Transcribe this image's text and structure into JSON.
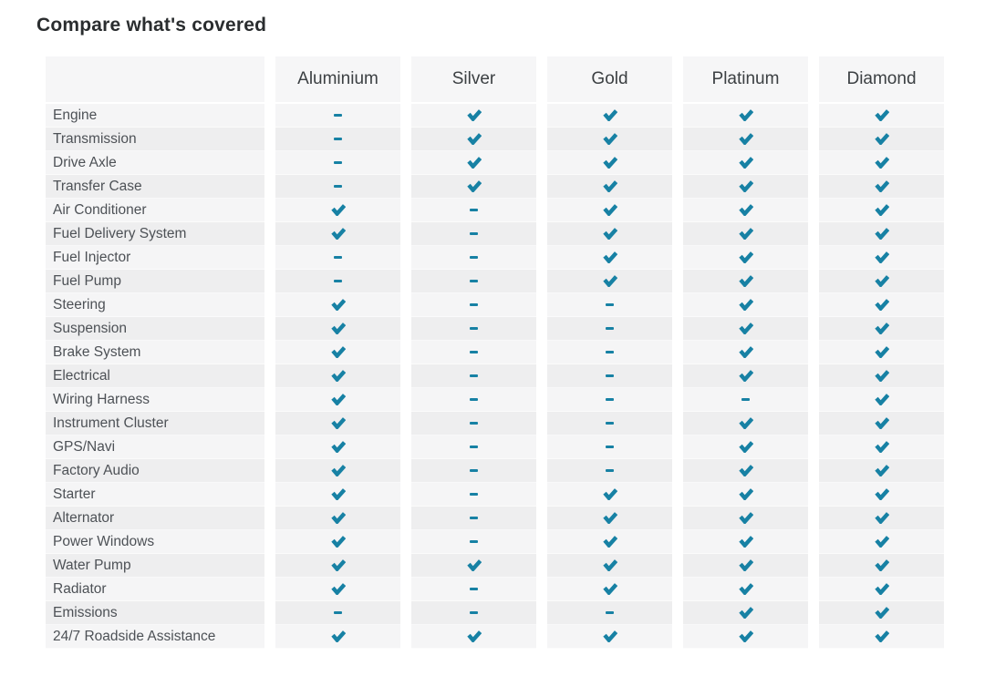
{
  "page": {
    "title": "Compare what's covered"
  },
  "colors": {
    "check": "#1781a4",
    "dash": "#1781a4",
    "row_odd": "#f5f5f6",
    "row_even": "#eeeeef",
    "header_bg": "#f6f6f7",
    "header_text": "#3c4043",
    "label_text": "#4d5156",
    "title_text": "#2a2d2f"
  },
  "icons": {
    "check": "✔",
    "dash": "–"
  },
  "chart_data": {
    "type": "table",
    "title": "Compare what's covered",
    "columns": [
      "Aluminium",
      "Silver",
      "Gold",
      "Platinum",
      "Diamond"
    ],
    "legend": {
      "check": "covered",
      "dash": "not covered"
    },
    "rows": [
      {
        "label": "Engine",
        "values": [
          "dash",
          "check",
          "check",
          "check",
          "check"
        ]
      },
      {
        "label": "Transmission",
        "values": [
          "dash",
          "check",
          "check",
          "check",
          "check"
        ]
      },
      {
        "label": "Drive Axle",
        "values": [
          "dash",
          "check",
          "check",
          "check",
          "check"
        ]
      },
      {
        "label": "Transfer Case",
        "values": [
          "dash",
          "check",
          "check",
          "check",
          "check"
        ]
      },
      {
        "label": "Air Conditioner",
        "values": [
          "check",
          "dash",
          "check",
          "check",
          "check"
        ]
      },
      {
        "label": "Fuel Delivery System",
        "values": [
          "check",
          "dash",
          "check",
          "check",
          "check"
        ]
      },
      {
        "label": "Fuel Injector",
        "values": [
          "dash",
          "dash",
          "check",
          "check",
          "check"
        ]
      },
      {
        "label": "Fuel Pump",
        "values": [
          "dash",
          "dash",
          "check",
          "check",
          "check"
        ]
      },
      {
        "label": "Steering",
        "values": [
          "check",
          "dash",
          "dash",
          "check",
          "check"
        ]
      },
      {
        "label": "Suspension",
        "values": [
          "check",
          "dash",
          "dash",
          "check",
          "check"
        ]
      },
      {
        "label": "Brake System",
        "values": [
          "check",
          "dash",
          "dash",
          "check",
          "check"
        ]
      },
      {
        "label": "Electrical",
        "values": [
          "check",
          "dash",
          "dash",
          "check",
          "check"
        ]
      },
      {
        "label": "Wiring Harness",
        "values": [
          "check",
          "dash",
          "dash",
          "dash",
          "check"
        ]
      },
      {
        "label": "Instrument Cluster",
        "values": [
          "check",
          "dash",
          "dash",
          "check",
          "check"
        ]
      },
      {
        "label": "GPS/Navi",
        "values": [
          "check",
          "dash",
          "dash",
          "check",
          "check"
        ]
      },
      {
        "label": "Factory Audio",
        "values": [
          "check",
          "dash",
          "dash",
          "check",
          "check"
        ]
      },
      {
        "label": "Starter",
        "values": [
          "check",
          "dash",
          "check",
          "check",
          "check"
        ]
      },
      {
        "label": "Alternator",
        "values": [
          "check",
          "dash",
          "check",
          "check",
          "check"
        ]
      },
      {
        "label": "Power Windows",
        "values": [
          "check",
          "dash",
          "check",
          "check",
          "check"
        ]
      },
      {
        "label": "Water Pump",
        "values": [
          "check",
          "check",
          "check",
          "check",
          "check"
        ]
      },
      {
        "label": "Radiator",
        "values": [
          "check",
          "dash",
          "check",
          "check",
          "check"
        ]
      },
      {
        "label": "Emissions",
        "values": [
          "dash",
          "dash",
          "dash",
          "check",
          "check"
        ]
      },
      {
        "label": "24/7 Roadside Assistance",
        "values": [
          "check",
          "check",
          "check",
          "check",
          "check"
        ]
      }
    ]
  }
}
